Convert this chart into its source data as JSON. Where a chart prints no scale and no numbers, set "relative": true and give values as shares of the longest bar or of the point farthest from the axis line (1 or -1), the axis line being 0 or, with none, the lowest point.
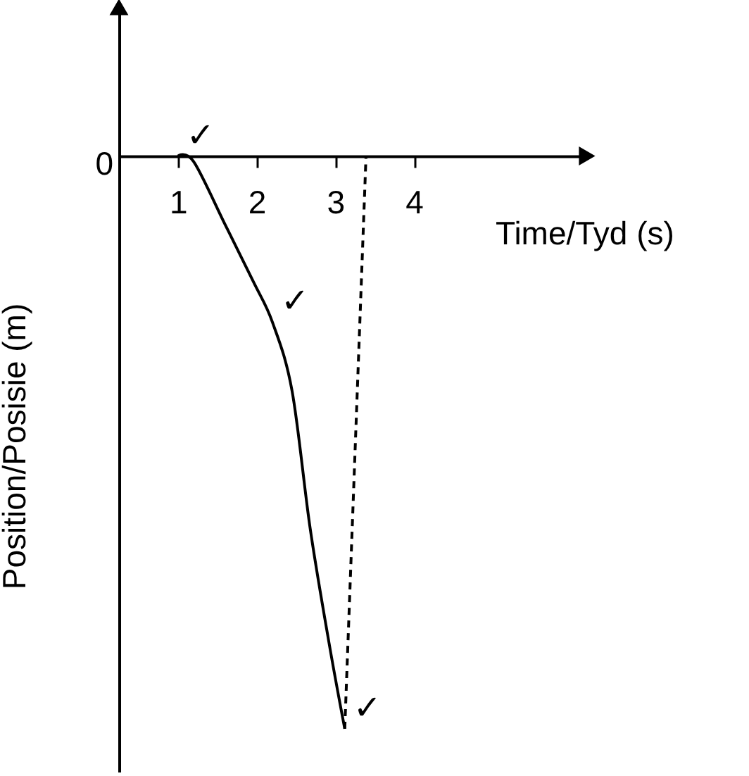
{
  "chart_data": {
    "type": "line",
    "xlabel": "Time/Tyd (s)",
    "ylabel": "Position/Posisie (m)",
    "relative": true,
    "xlim": [
      0.25,
      6.2
    ],
    "xticks": [
      1,
      2,
      3,
      4
    ],
    "grid": false,
    "marker": "none",
    "series": [
      {
        "color": "#000000",
        "line_style": "solid",
        "x": [
          1,
          1.2,
          1.6,
          1.96,
          2.2,
          2.45,
          2.68,
          2.92,
          3.12
        ],
        "values": [
          0,
          -0.01,
          -0.12,
          -0.22,
          -0.29,
          -0.41,
          -0.65,
          -0.85,
          -1
        ]
      },
      {
        "color": "#000000",
        "line_style": "dashed",
        "x": [
          3.39,
          3.12
        ],
        "values": [
          0,
          -1
        ]
      }
    ],
    "annotations": [
      "0",
      "✓",
      "✓",
      "✓"
    ]
  }
}
